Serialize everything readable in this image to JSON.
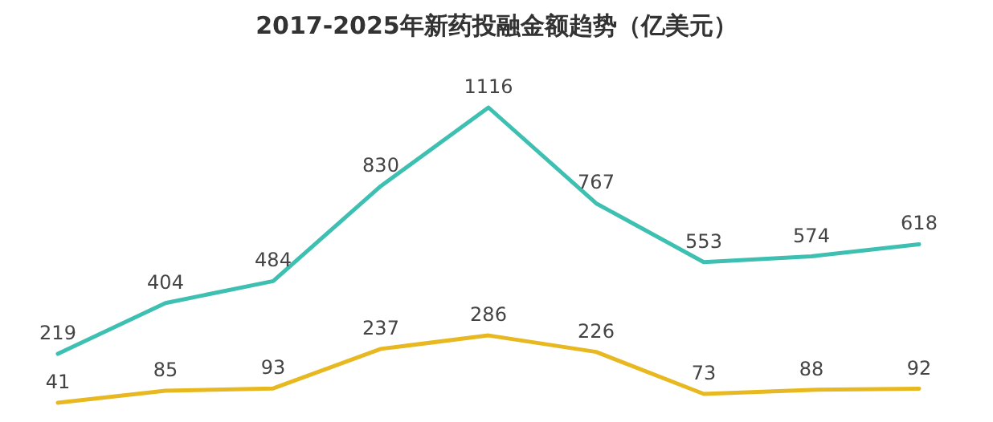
{
  "chart_data": {
    "type": "line",
    "title": "2017-2025年新药投融金额趋势（亿美元）",
    "categories": [
      null,
      null,
      null,
      null,
      null,
      null,
      null,
      null,
      null
    ],
    "series": [
      {
        "color": "#3dbfb2",
        "values": [
          219,
          404,
          484,
          830,
          1116,
          767,
          553,
          574,
          618
        ]
      },
      {
        "color": "#e8b820",
        "values": [
          41,
          85,
          93,
          237,
          286,
          226,
          73,
          88,
          92
        ]
      }
    ],
    "data_labels": true
  }
}
